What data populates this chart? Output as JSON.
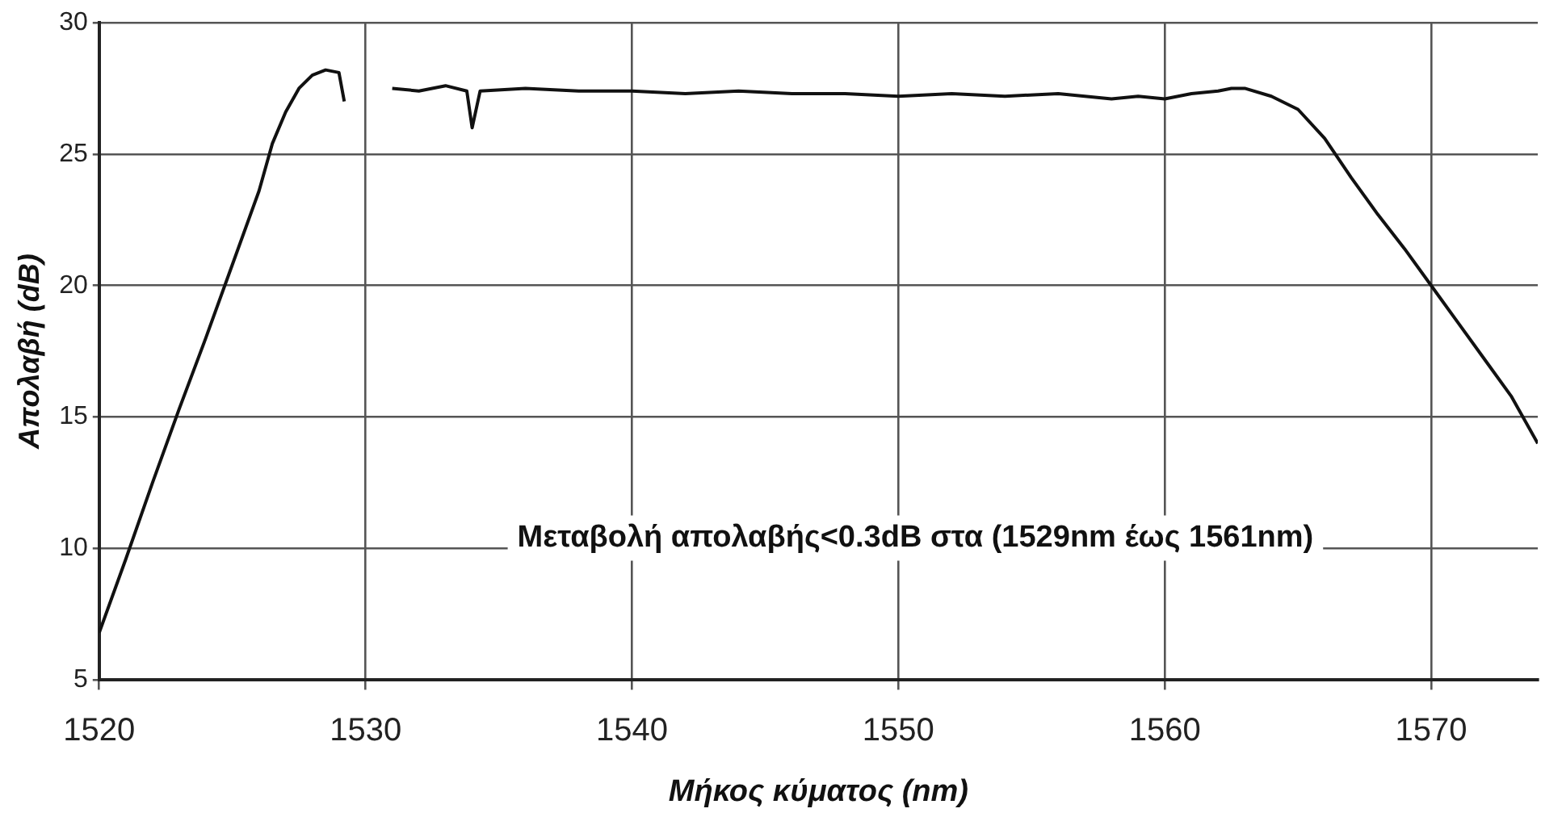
{
  "chart_data": {
    "type": "line",
    "xlabel": "Μήκος κύματος (nm)",
    "ylabel": "Απολαβή (dB)",
    "annotations": [
      "Μεταβολή απολαβής<0.3dB στα (1529nm έως 1561nm)"
    ],
    "xlim": [
      1520,
      1574
    ],
    "ylim": [
      5,
      30
    ],
    "xticks": [
      1520,
      1530,
      1540,
      1550,
      1560,
      1570
    ],
    "yticks": [
      5,
      10,
      15,
      20,
      25,
      30
    ],
    "grid": true,
    "legend": false,
    "marker": "none",
    "line_style": "solid",
    "series": [
      {
        "color": "#111111",
        "x": [
          1520,
          1521,
          1522,
          1523,
          1524,
          1525,
          1526,
          1526.5,
          1527,
          1527.5,
          1528,
          1528.5,
          1529,
          1529.2,
          1529.8,
          1531,
          1532,
          1533,
          1533.8,
          1534,
          1534.3,
          1536,
          1538,
          1540,
          1542,
          1544,
          1546,
          1548,
          1550,
          1552,
          1554,
          1556,
          1558,
          1559,
          1560,
          1561,
          1562,
          1562.5,
          1563,
          1564,
          1565,
          1566,
          1567,
          1568,
          1569,
          1570,
          1571,
          1572,
          1573,
          1574
        ],
        "values": [
          6.8,
          9.6,
          12.5,
          15.3,
          18.0,
          20.8,
          23.6,
          25.4,
          26.6,
          27.5,
          28.0,
          28.2,
          28.1,
          27.0,
          null,
          27.5,
          27.4,
          27.6,
          27.4,
          26.0,
          27.4,
          27.5,
          27.4,
          27.4,
          27.3,
          27.4,
          27.3,
          27.3,
          27.2,
          27.3,
          27.2,
          27.3,
          27.1,
          27.2,
          27.1,
          27.3,
          27.4,
          27.5,
          27.5,
          27.2,
          26.7,
          25.6,
          24.1,
          22.7,
          21.4,
          20.0,
          18.6,
          17.2,
          15.8,
          14.0
        ]
      }
    ]
  }
}
